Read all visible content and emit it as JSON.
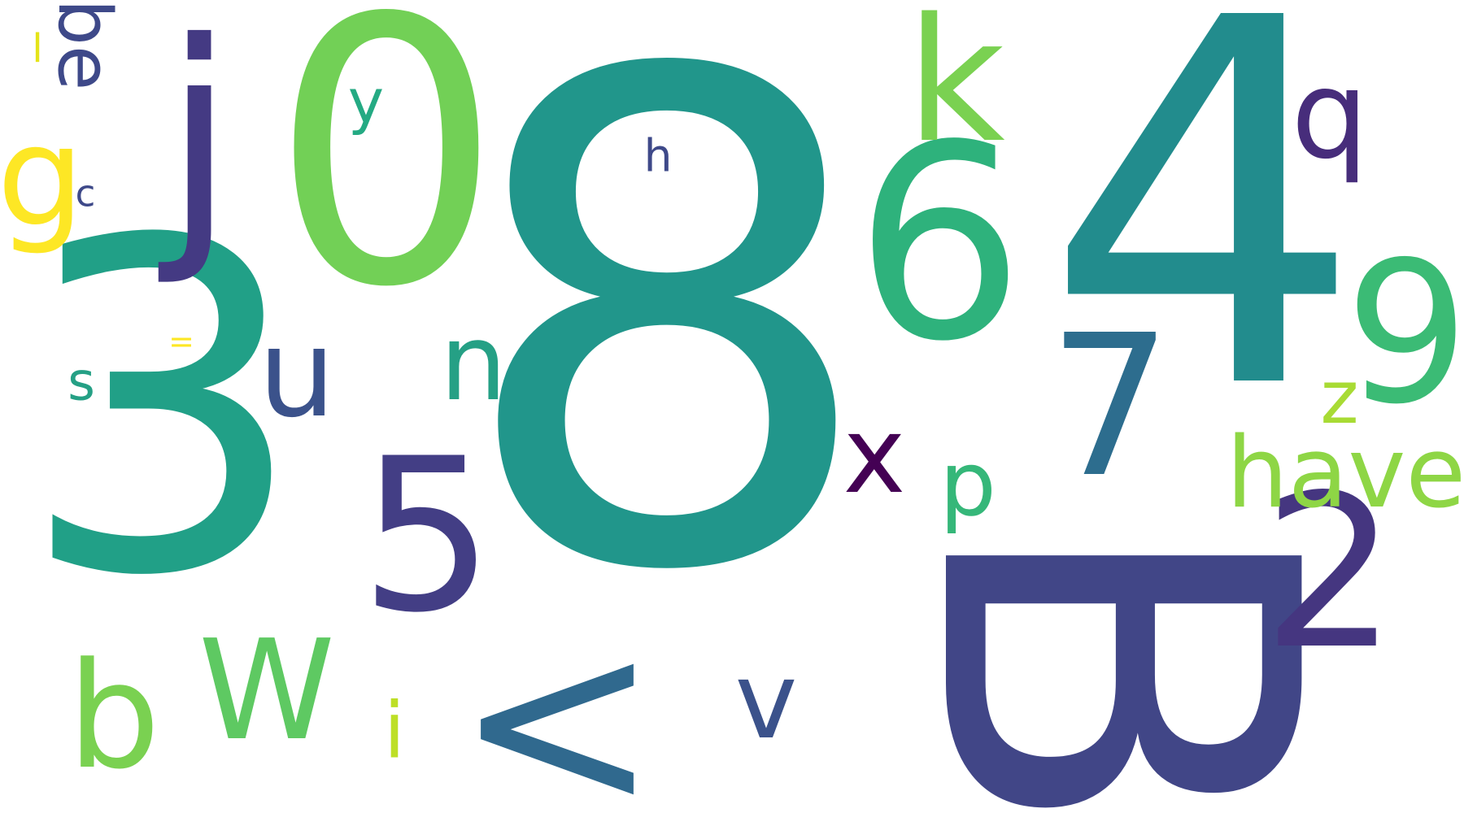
{
  "words": [
    {
      "text": "8",
      "color": "#21968b",
      "rotation": "none"
    },
    {
      "text": "4",
      "color": "#228c8d",
      "rotation": "none"
    },
    {
      "text": "3",
      "color": "#21a087",
      "rotation": "none"
    },
    {
      "text": "0",
      "color": "#72d056",
      "rotation": "none"
    },
    {
      "text": "6",
      "color": "#2eb27c",
      "rotation": "none"
    },
    {
      "text": "B",
      "color": "#414687",
      "rotation": "cw"
    },
    {
      "text": "7",
      "color": "#2d6d8e",
      "rotation": "none"
    },
    {
      "text": "2",
      "color": "#453680",
      "rotation": "none"
    },
    {
      "text": "5",
      "color": "#433e85",
      "rotation": "none"
    },
    {
      "text": "j",
      "color": "#443a83",
      "rotation": "none"
    },
    {
      "text": "<",
      "color": "#30698e",
      "rotation": "none"
    },
    {
      "text": "9",
      "color": "#3bbb75",
      "rotation": "none"
    },
    {
      "text": "k",
      "color": "#7ad151",
      "rotation": "none"
    },
    {
      "text": "W",
      "color": "#5ec962",
      "rotation": "none"
    },
    {
      "text": "have",
      "color": "#8ed645",
      "rotation": "none"
    },
    {
      "text": "b",
      "color": "#7ad151",
      "rotation": "none"
    },
    {
      "text": "u",
      "color": "#3b528b",
      "rotation": "none"
    },
    {
      "text": "q",
      "color": "#472d7b",
      "rotation": "none"
    },
    {
      "text": "n",
      "color": "#25a085",
      "rotation": "none"
    },
    {
      "text": "g",
      "color": "#fde725",
      "rotation": "none"
    },
    {
      "text": "x",
      "color": "#440154",
      "rotation": "none"
    },
    {
      "text": "v",
      "color": "#3b528b",
      "rotation": "none"
    },
    {
      "text": "p",
      "color": "#35b779",
      "rotation": "none"
    },
    {
      "text": "be",
      "color": "#3e4989",
      "rotation": "cw"
    },
    {
      "text": "z",
      "color": "#a8db34",
      "rotation": "none"
    },
    {
      "text": "y",
      "color": "#24aa83",
      "rotation": "none"
    },
    {
      "text": "i",
      "color": "#bddf26",
      "rotation": "none"
    },
    {
      "text": "s",
      "color": "#25a085",
      "rotation": "none"
    },
    {
      "text": "h",
      "color": "#3e4989",
      "rotation": "none"
    },
    {
      "text": "c",
      "color": "#3e4989",
      "rotation": "none"
    },
    {
      "text": "l",
      "color": "#e5e419",
      "rotation": "none"
    },
    {
      "text": "=",
      "color": "#fde725",
      "rotation": "none"
    }
  ]
}
